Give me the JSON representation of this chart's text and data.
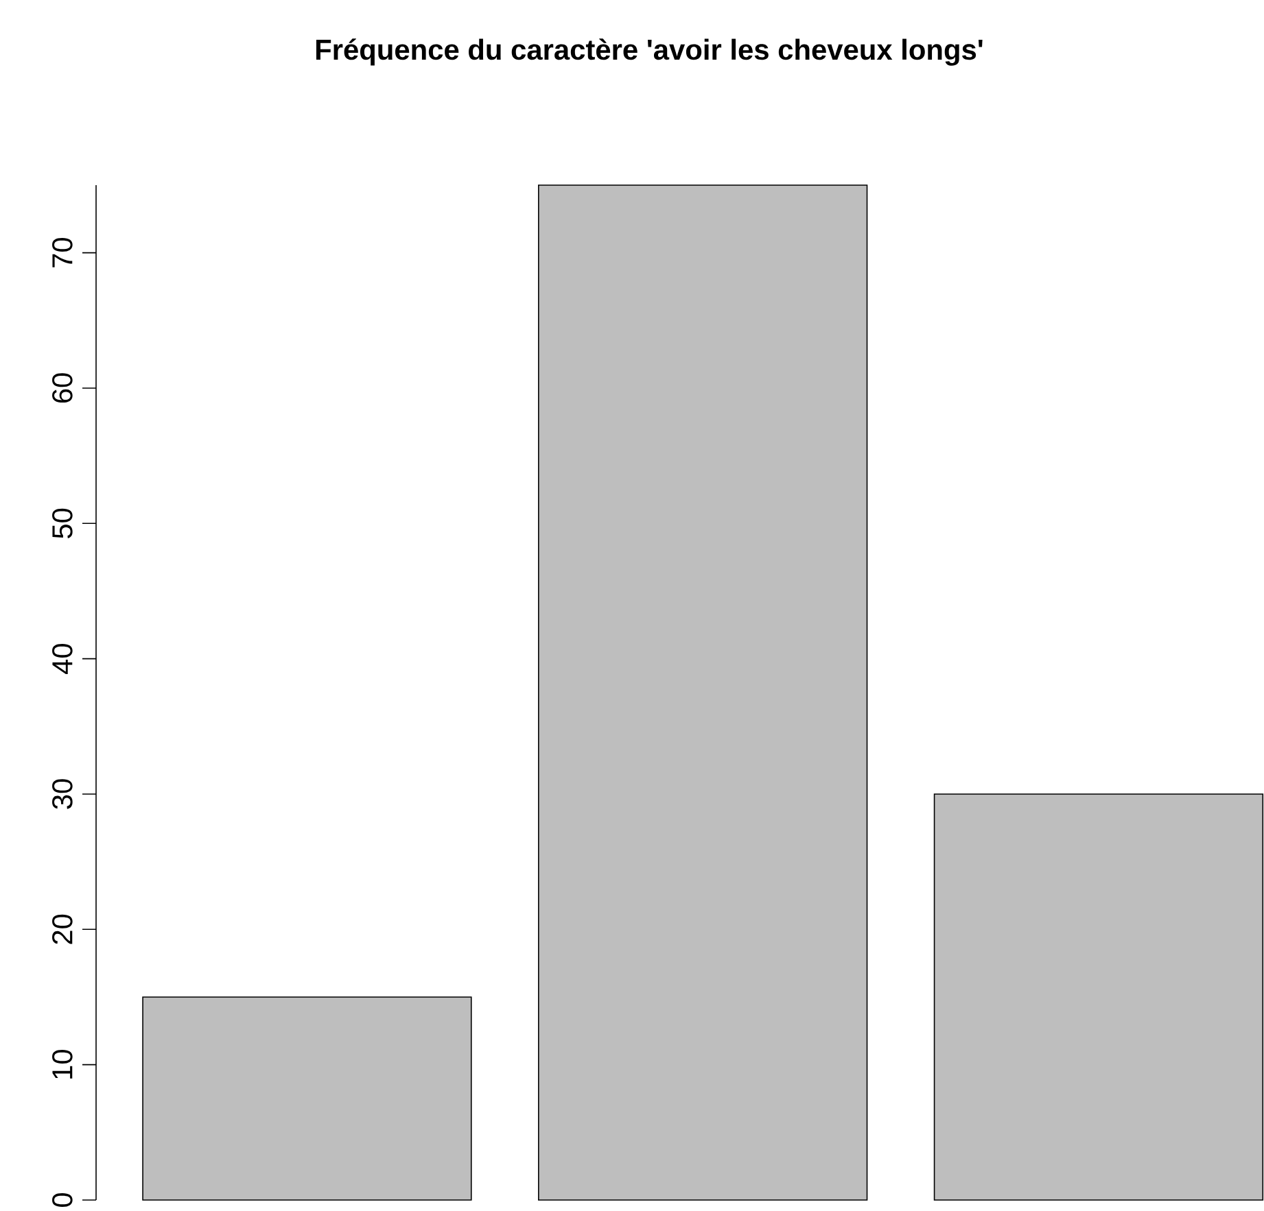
{
  "chart_data": {
    "type": "bar",
    "title": "Fréquence du caractère 'avoir les cheveux longs'",
    "categories": [
      null,
      null,
      null
    ],
    "values": [
      15,
      75,
      30
    ],
    "color": "#bebebe",
    "ylim": [
      0,
      75
    ],
    "yticks": [
      0,
      10,
      20,
      30,
      40,
      50,
      60,
      70
    ]
  }
}
